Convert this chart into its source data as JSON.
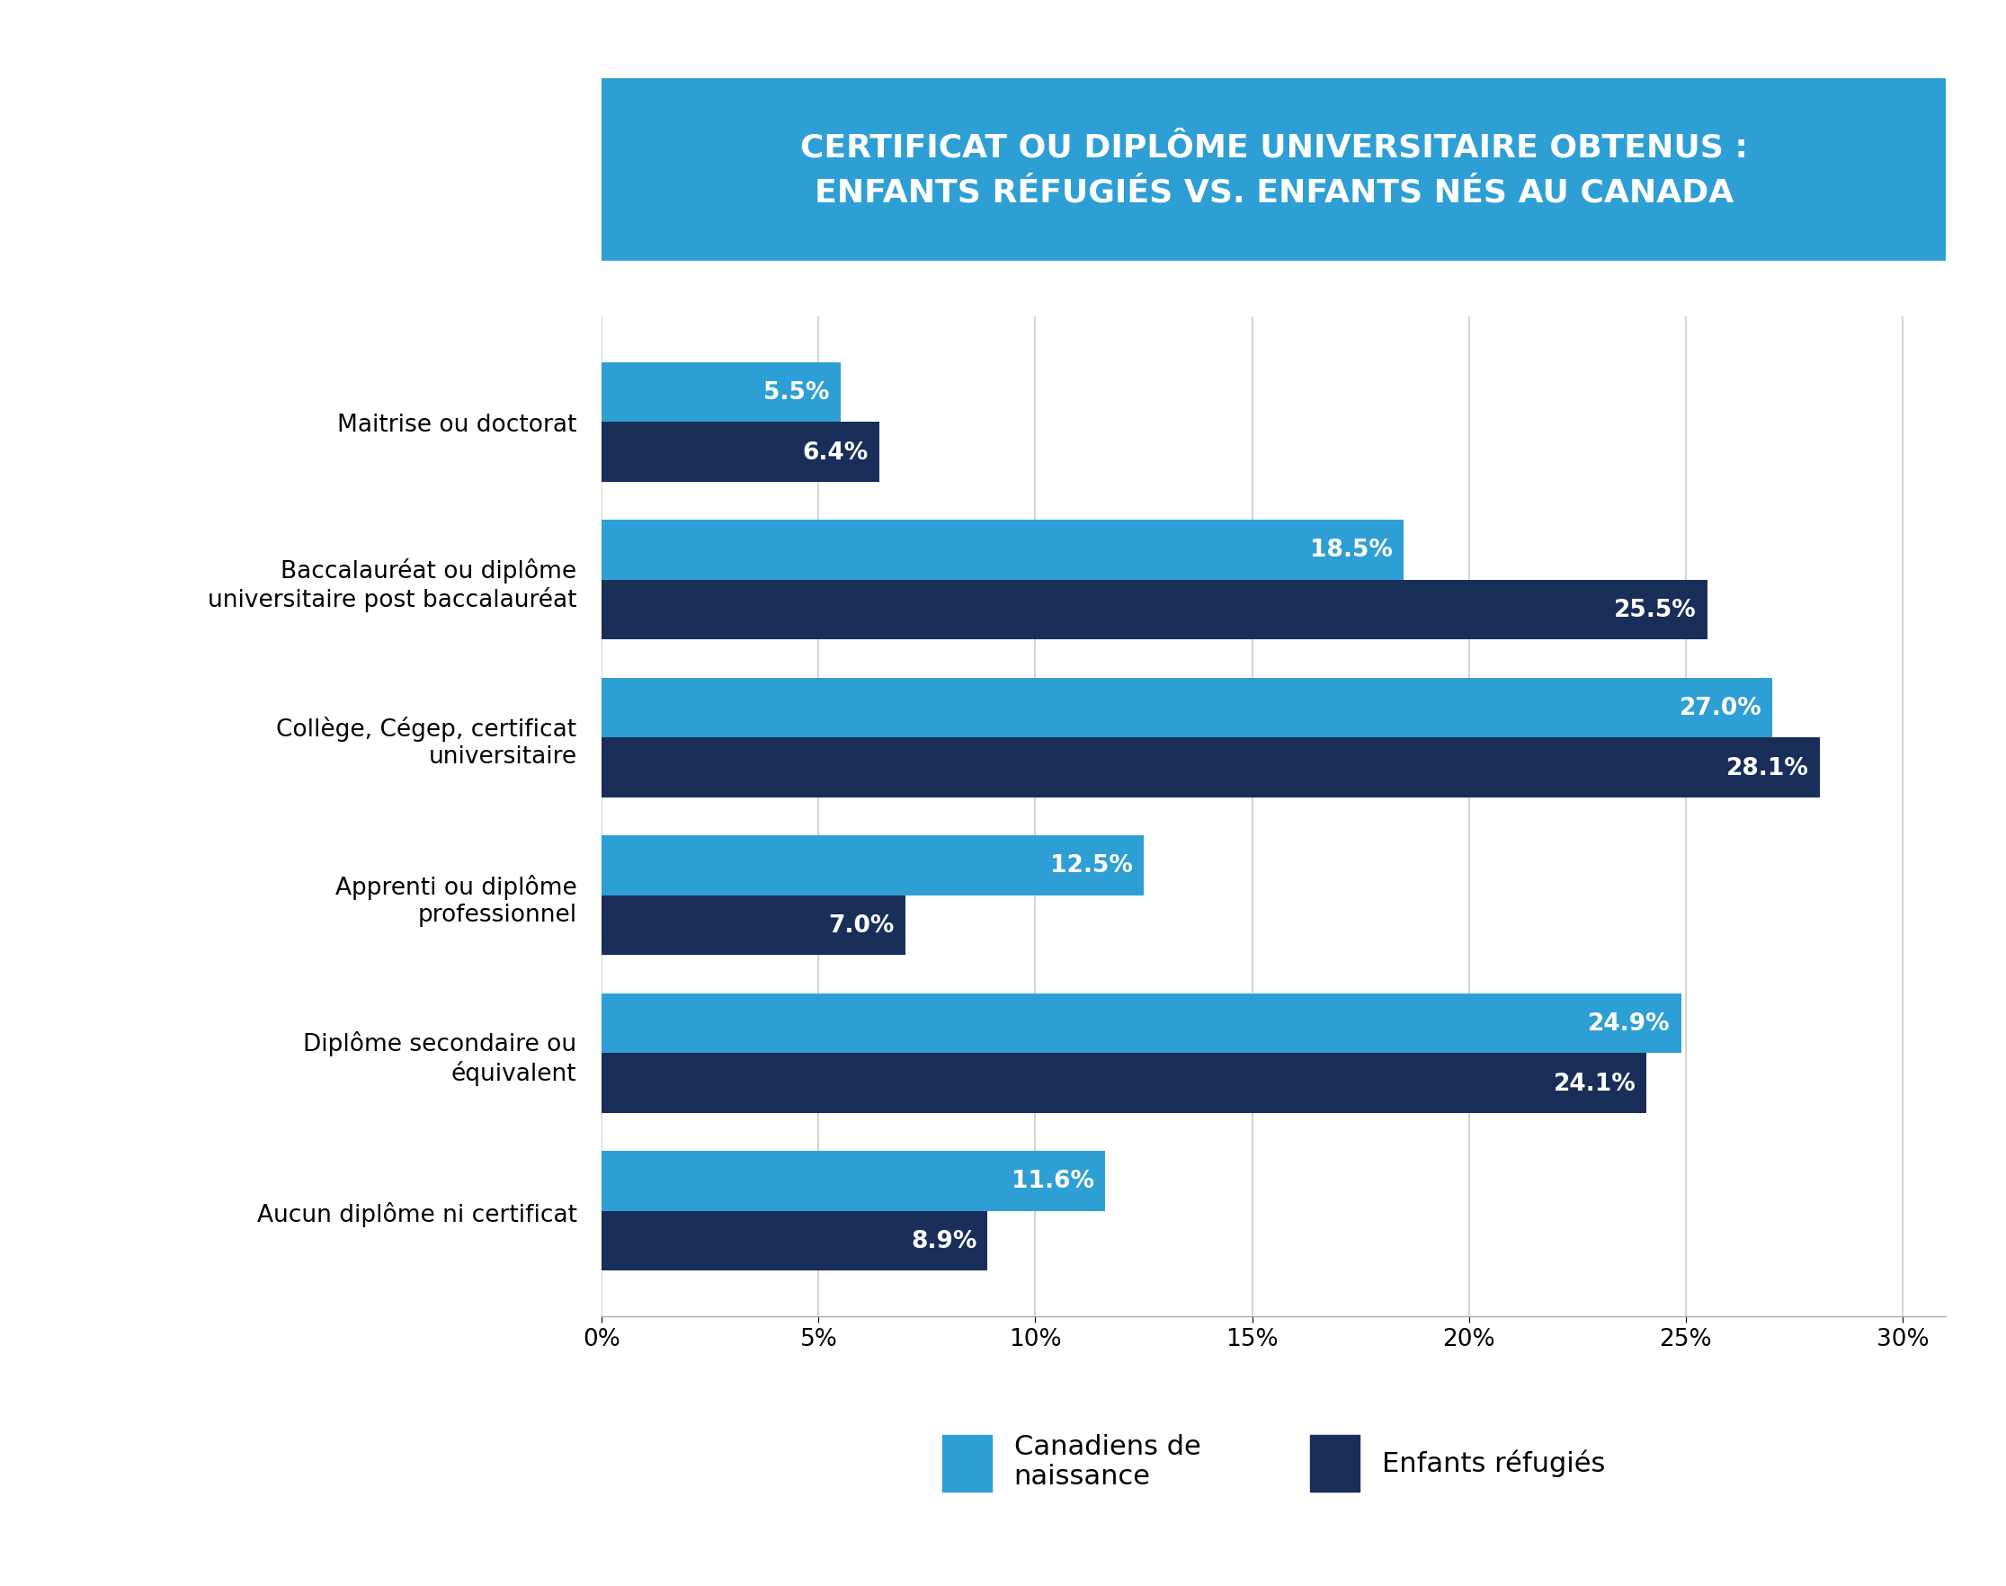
{
  "title_line1": "CERTIFICAT OU DIPLÔME UNIVERSITAIRE OBTENUS :",
  "title_line2": "ENFANTS RÉFUGIÉS VS. ENFANTS NÉS AU CANADA",
  "title_bg_color": "#2e9fd4",
  "title_text_color": "#ffffff",
  "categories": [
    "Maitrise ou doctorat",
    "Baccalauréat ou diplôme\nuniversitaire post baccalauréat",
    "Collège, Cégep, certificat\nuniversitaire",
    "Apprenti ou diplôme\nprofessionnel",
    "Diplôme secondaire ou\néquivalent",
    "Aucun diplôme ni certificat"
  ],
  "canadiens_values": [
    5.5,
    18.5,
    27.0,
    12.5,
    24.9,
    11.6
  ],
  "refugies_values": [
    6.4,
    25.5,
    28.1,
    7.0,
    24.1,
    8.9
  ],
  "canadiens_color": "#2e9fd4",
  "refugies_color": "#1a2e5a",
  "bar_height": 0.38,
  "xlim": [
    0,
    31
  ],
  "xticks": [
    0,
    5,
    10,
    15,
    20,
    25,
    30
  ],
  "xtick_labels": [
    "0%",
    "5%",
    "10%",
    "15%",
    "20%",
    "25%",
    "30%"
  ],
  "legend_label_canadiens": "Canadiens de\nnaissance",
  "legend_label_refugies": "Enfants réfugiés",
  "background_color": "#ffffff",
  "grid_color": "#cccccc"
}
